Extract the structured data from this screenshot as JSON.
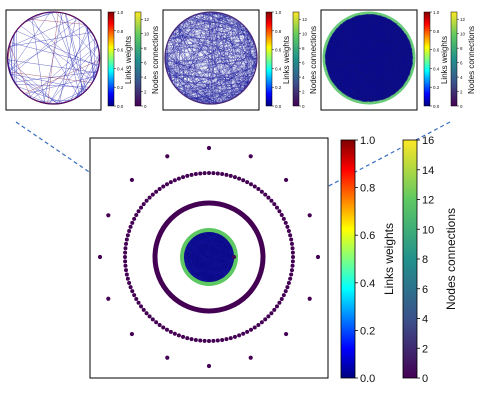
{
  "chart_data": {
    "type": "network",
    "panels": [
      {
        "id": "inset-sparse",
        "description_level": "sparse",
        "link_colorbar": {
          "label": "Links weights",
          "range": [
            0.0,
            1.0
          ],
          "ticks": [
            "0.0",
            "0.2",
            "0.4",
            "0.6",
            "0.8",
            "1.0"
          ],
          "colormap": "jet"
        },
        "node_colorbar": {
          "label": "Nodes connections",
          "range": [
            0,
            13
          ],
          "ticks": [
            "0",
            "2",
            "4",
            "6",
            "8",
            "10",
            "12"
          ],
          "colormap": "viridis"
        }
      },
      {
        "id": "inset-dense",
        "link_colorbar": {
          "label": "Links weights",
          "range": [
            0.0,
            1.0
          ],
          "ticks": [
            "0.0",
            "0.2",
            "0.4",
            "0.6",
            "0.8",
            "1.0"
          ],
          "colormap": "jet"
        },
        "node_colorbar": {
          "label": "Nodes connections",
          "range": [
            0,
            13
          ],
          "ticks": [
            "0",
            "2",
            "4",
            "6",
            "8",
            "10",
            "12"
          ],
          "colormap": "viridis"
        }
      },
      {
        "id": "inset-full",
        "link_colorbar": {
          "label": "Links weights",
          "range": [
            0.0,
            1.0
          ],
          "ticks": [
            "0.0",
            "0.2",
            "0.4",
            "0.6",
            "0.8",
            "1.0"
          ],
          "colormap": "jet"
        },
        "node_colorbar": {
          "label": "Nodes connections",
          "range": [
            0,
            13
          ],
          "ticks": [
            "0",
            "2",
            "4",
            "6",
            "8",
            "10",
            "12"
          ],
          "colormap": "viridis"
        }
      },
      {
        "id": "main",
        "link_colorbar": {
          "label": "Links weights",
          "range": [
            0.0,
            1.0
          ],
          "ticks": [
            "0.0",
            "0.2",
            "0.4",
            "0.6",
            "0.8",
            "1.0"
          ],
          "colormap": "jet"
        },
        "node_colorbar": {
          "label": "Nodes connections",
          "range": [
            0,
            16
          ],
          "ticks": [
            "0",
            "2",
            "4",
            "6",
            "8",
            "10",
            "12",
            "14",
            "16"
          ],
          "colormap": "viridis"
        },
        "rings": [
          {
            "name": "outer-sparse-ring",
            "nodes": 16,
            "node_color": "#440154"
          },
          {
            "name": "dotted-ring",
            "nodes": 120,
            "node_color": "#440154"
          },
          {
            "name": "dense-ring",
            "nodes": 260,
            "node_color": "#440154"
          },
          {
            "name": "core-network",
            "node_color": "#5ec962",
            "link_color": "#00008f"
          }
        ]
      }
    ],
    "connector_color": "#3a6fc4"
  }
}
